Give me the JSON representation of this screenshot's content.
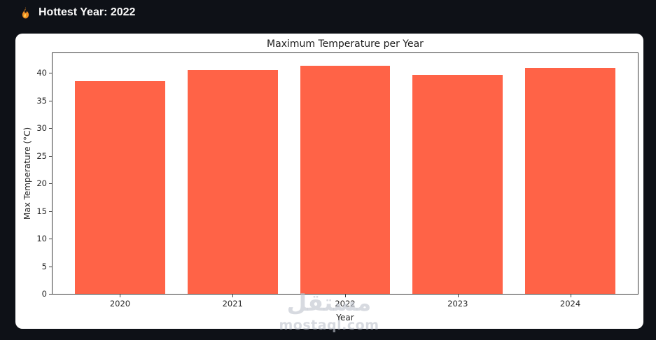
{
  "header": {
    "icon": "flame-icon",
    "title": "Hottest Year: 2022"
  },
  "chart_data": {
    "type": "bar",
    "title": "Maximum Temperature per Year",
    "xlabel": "Year",
    "ylabel": "Max Temperature (°C)",
    "categories": [
      "2020",
      "2021",
      "2022",
      "2023",
      "2024"
    ],
    "values": [
      38.5,
      40.5,
      41.3,
      39.7,
      41.0
    ],
    "yticks": [
      0,
      5,
      10,
      15,
      20,
      25,
      30,
      35,
      40
    ],
    "ylim": [
      0,
      43.6
    ],
    "bar_color": "#ff6347",
    "bar_width_fraction": 0.8,
    "grid": false,
    "legend": "none",
    "plot_background": "#ffffff"
  },
  "watermark": {
    "logo_text": "مستقل",
    "site": "mostaql.com"
  },
  "colors": {
    "page_background": "#0e1117",
    "panel_background": "#ffffff",
    "header_text": "#fafafa",
    "bar": "#ff6347",
    "axis": "#3d3d3d"
  }
}
